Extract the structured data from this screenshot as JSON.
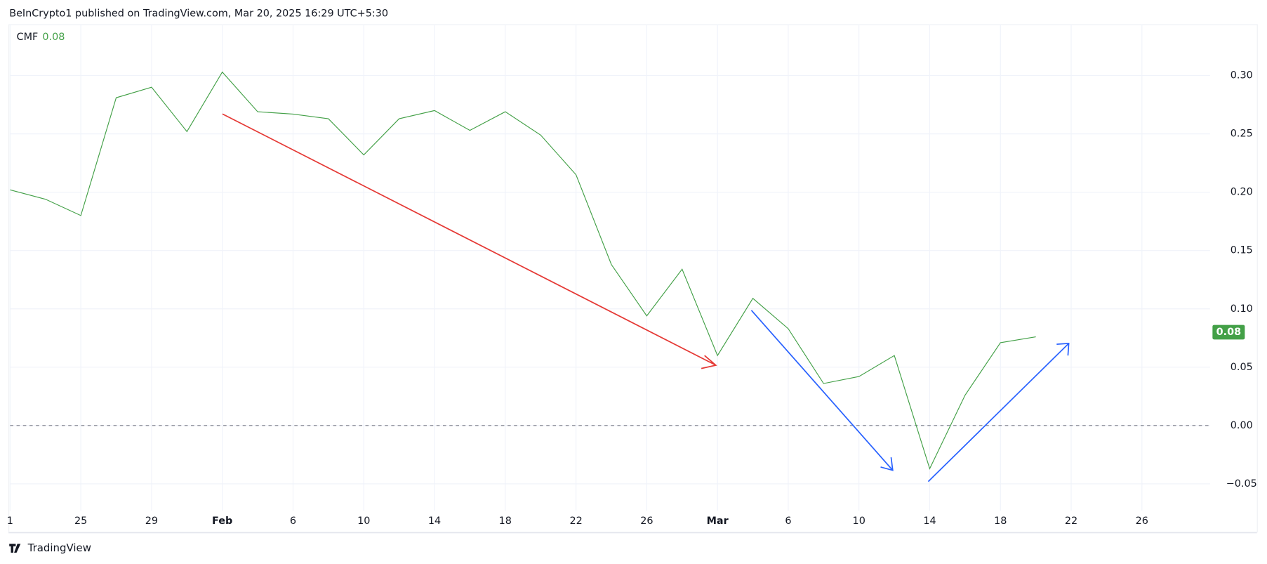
{
  "chart_data": {
    "type": "line",
    "header": "BeInCrypto1 published on TradingView.com, Mar 20, 2025 16:29 UTC+5:30",
    "indicator_name": "CMF",
    "last_value": 0.08,
    "brand": "TradingView",
    "categories": [
      "1",
      null,
      "25",
      null,
      "29",
      null,
      "Feb",
      null,
      "6",
      null,
      "10",
      null,
      "14",
      null,
      "18",
      null,
      "22",
      null,
      "26",
      null,
      "Mar",
      null,
      "6",
      null,
      "10",
      null,
      "14",
      null,
      "18",
      null,
      "22",
      null,
      "26",
      null
    ],
    "series": [
      {
        "name": "CMF",
        "color": "#43a047",
        "values": [
          0.202,
          0.194,
          0.18,
          0.281,
          0.29,
          0.252,
          0.303,
          0.269,
          0.267,
          0.263,
          0.232,
          0.263,
          0.27,
          0.253,
          0.269,
          0.249,
          0.215,
          0.138,
          0.094,
          0.134,
          0.06,
          0.109,
          0.083,
          0.036,
          0.042,
          0.06,
          -0.037,
          0.026,
          0.071,
          0.076,
          null,
          null,
          null,
          null
        ]
      }
    ],
    "ylim": [
      -0.073,
      0.344
    ],
    "yticks": [
      {
        "value": -0.05,
        "label": "−0.05"
      },
      {
        "value": 0,
        "label": "0.00"
      },
      {
        "value": 0.05,
        "label": "0.05"
      },
      {
        "value": 0.1,
        "label": "0.10"
      },
      {
        "value": 0.15,
        "label": "0.15"
      },
      {
        "value": 0.2,
        "label": "0.20"
      },
      {
        "value": 0.25,
        "label": "0.25"
      },
      {
        "value": 0.3,
        "label": "0.30"
      }
    ],
    "grid": true
  }
}
